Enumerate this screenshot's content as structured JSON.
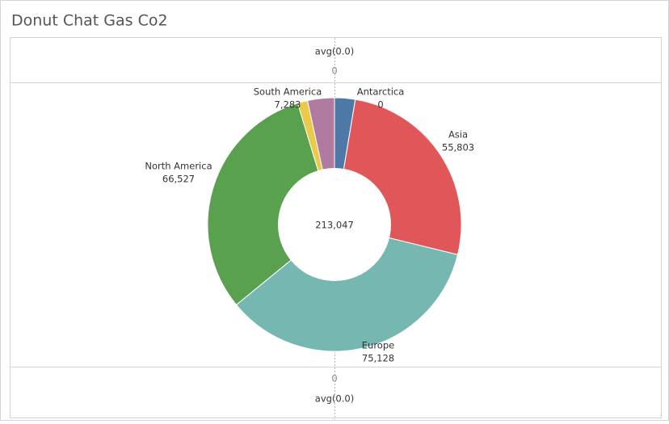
{
  "chart_data": {
    "type": "donut",
    "title": "Donut Chat Gas Co2",
    "categories": [
      null,
      "Antarctica",
      "Asia",
      "Europe",
      "North America",
      null,
      "South America"
    ],
    "values": [
      5600,
      0,
      55803,
      75128,
      66527,
      2706,
      7283
    ],
    "value_labels": [
      null,
      "0",
      "55,803",
      "75,128",
      "66,527",
      null,
      "7,283"
    ],
    "colors": [
      "#4e79a7",
      "#f28e2b",
      "#e15759",
      "#76b7b2",
      "#59a14f",
      "#edc948",
      "#b07aa1"
    ],
    "center_label": "213,047",
    "top_axis_title": "avg(0.0)",
    "top_ticks": [
      0
    ],
    "bottom_axis_title": "avg(0.0)",
    "bottom_ticks": [
      0
    ]
  }
}
